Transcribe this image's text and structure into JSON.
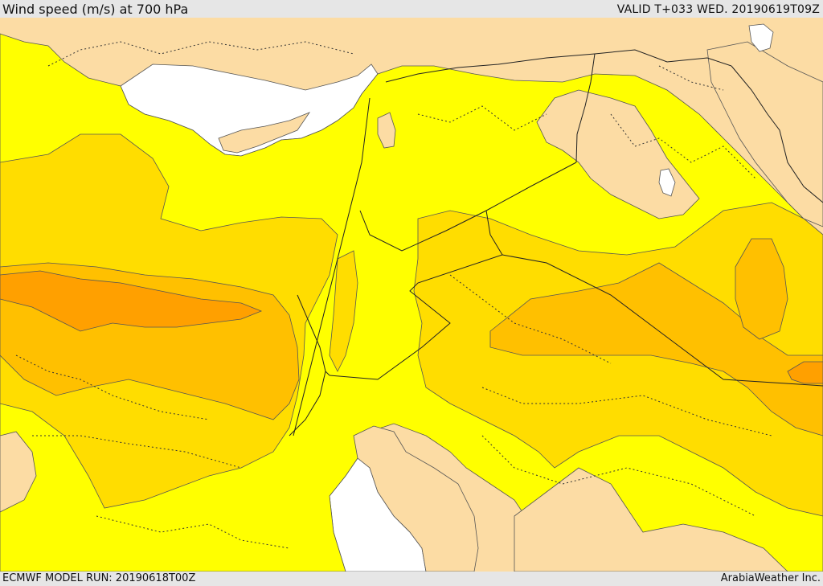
{
  "header": {
    "title": "Wind speed (m/s) at 700 hPa",
    "valid": "VALID T+033 WED. 20190619T09Z"
  },
  "footer": {
    "model_run": "ECMWF MODEL RUN: 20190618T00Z",
    "credit": "ArabiaWeather Inc."
  },
  "colors": {
    "land": "#fcdca4",
    "sea": "#ffffff",
    "wind_band_1": "#ffff00",
    "wind_band_2": "#ffdd00",
    "wind_band_3": "#ffc000",
    "wind_band_4": "#ffa000",
    "contour": "#555555",
    "border": "#222222"
  }
}
